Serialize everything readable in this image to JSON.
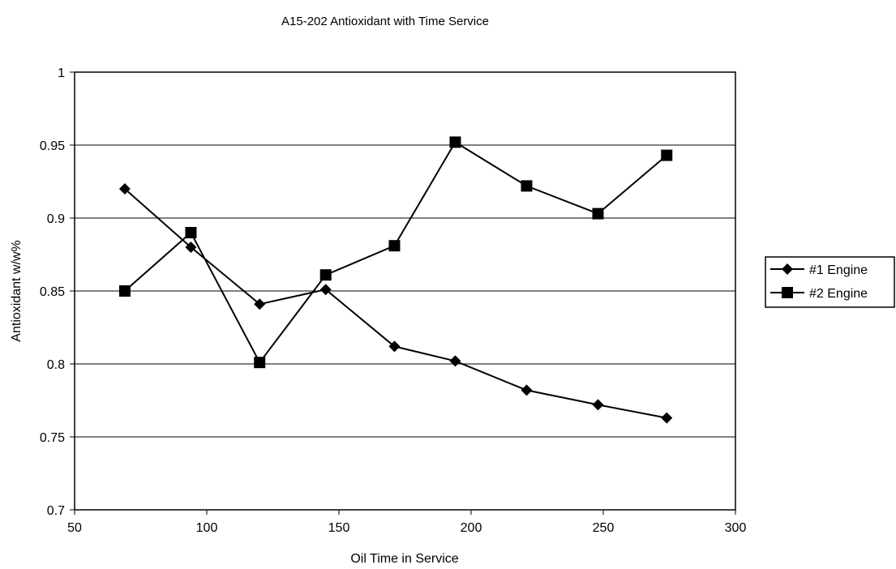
{
  "chart_data": {
    "type": "line",
    "title": "A15-202 Antioxidant with Time Service",
    "xlabel": "Oil Time in Service",
    "ylabel": "Antioxidant w/w%",
    "xlim": [
      50,
      300
    ],
    "ylim": [
      0.7,
      1
    ],
    "xticks": [
      50,
      100,
      150,
      200,
      250,
      300
    ],
    "yticks": [
      0.7,
      0.75,
      0.8,
      0.85,
      0.9,
      0.95,
      1
    ],
    "grid": "horizontal",
    "legend_position": "right",
    "series": [
      {
        "name": "#1 Engine",
        "marker": "diamond",
        "points": [
          {
            "x": 69,
            "y": 0.92
          },
          {
            "x": 94,
            "y": 0.88
          },
          {
            "x": 120,
            "y": 0.841
          },
          {
            "x": 145,
            "y": 0.851
          },
          {
            "x": 171,
            "y": 0.812
          },
          {
            "x": 194,
            "y": 0.802
          },
          {
            "x": 221,
            "y": 0.782
          },
          {
            "x": 248,
            "y": 0.772
          },
          {
            "x": 274,
            "y": 0.763
          }
        ]
      },
      {
        "name": "#2 Engine",
        "marker": "square",
        "points": [
          {
            "x": 69,
            "y": 0.85
          },
          {
            "x": 94,
            "y": 0.89
          },
          {
            "x": 120,
            "y": 0.801
          },
          {
            "x": 145,
            "y": 0.861
          },
          {
            "x": 171,
            "y": 0.881
          },
          {
            "x": 194,
            "y": 0.952
          },
          {
            "x": 221,
            "y": 0.922
          },
          {
            "x": 248,
            "y": 0.903
          },
          {
            "x": 274,
            "y": 0.943
          }
        ]
      }
    ]
  }
}
